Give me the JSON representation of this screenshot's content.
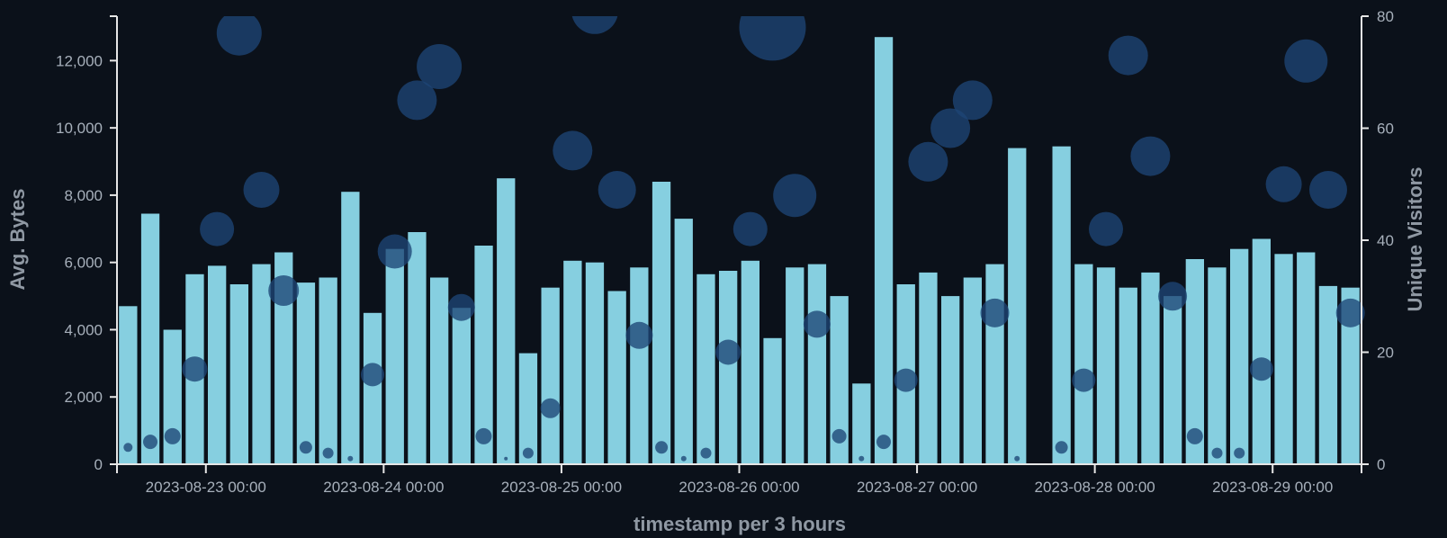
{
  "chart_data": {
    "type": "bar",
    "xlabel": "timestamp per 3 hours",
    "ylabel": "Avg. Bytes",
    "y2label": "Unique Visitors",
    "ylim": [
      0,
      13000
    ],
    "y2lim": [
      0,
      80
    ],
    "y_ticks": [
      "0",
      "2,000",
      "4,000",
      "6,000",
      "8,000",
      "10,000",
      "12,000"
    ],
    "y2_ticks": [
      "0",
      "20",
      "40",
      "60",
      "80"
    ],
    "x_ticks": [
      "2023-08-23 00:00",
      "2023-08-24 00:00",
      "2023-08-25 00:00",
      "2023-08-26 00:00",
      "2023-08-27 00:00",
      "2023-08-28 00:00",
      "2023-08-29 00:00"
    ],
    "grid": false,
    "series": [
      {
        "label_kind": "bars",
        "axis": "left",
        "values": [
          4700,
          7450,
          4000,
          5650,
          5900,
          5350,
          5950,
          6300,
          5400,
          5550,
          8100,
          4500,
          6400,
          6900,
          5550,
          4650,
          6500,
          8500,
          3300,
          5250,
          6050,
          6000,
          5150,
          5850,
          8400,
          7300,
          5650,
          5750,
          6050,
          3750,
          5850,
          5950,
          5000,
          2400,
          12700,
          5350,
          5700,
          5000,
          5550,
          5950,
          9400,
          0,
          9450,
          5950,
          5850,
          5250,
          5700,
          5000,
          6100,
          5850,
          6400,
          6700,
          6250,
          6300,
          5300,
          5250
        ]
      },
      {
        "label_kind": "bubbles",
        "axis": "right",
        "values": [
          3,
          4,
          5,
          17,
          42,
          77,
          49,
          31,
          3,
          2,
          1,
          16,
          38,
          65,
          71,
          28,
          5,
          1,
          2,
          10,
          56,
          81,
          49,
          23,
          3,
          1,
          2,
          20,
          42,
          78,
          48,
          25,
          5,
          1,
          4,
          15,
          54,
          60,
          65,
          27,
          1,
          0,
          3,
          15,
          42,
          73,
          55,
          30,
          5,
          2,
          2,
          17,
          50,
          72,
          49,
          27
        ],
        "sizes": [
          5,
          8,
          9,
          14,
          19,
          25,
          20,
          17,
          7,
          6,
          3,
          13,
          19,
          22,
          25,
          15,
          9,
          2,
          6,
          11,
          22,
          26,
          21,
          15,
          7,
          3,
          6,
          14,
          19,
          37,
          24,
          15,
          8,
          3,
          8,
          13,
          22,
          22,
          22,
          16,
          3,
          0,
          7,
          13,
          19,
          22,
          22,
          16,
          9,
          6,
          6,
          13,
          20,
          24,
          21,
          16
        ]
      }
    ]
  }
}
